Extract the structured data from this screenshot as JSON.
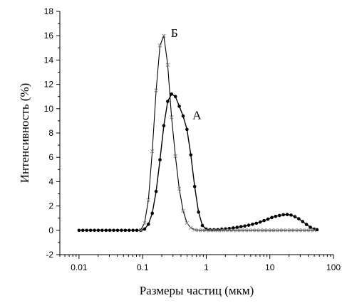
{
  "chart_data": {
    "type": "line",
    "xlabel": "Размеры частиц (мкм)",
    "ylabel": "Интенсивность (%)",
    "x_scale": "log",
    "xlim": [
      0.005,
      100
    ],
    "ylim": [
      -2,
      18
    ],
    "x_ticks": [
      0.01,
      0.1,
      1,
      10,
      100
    ],
    "x_tick_labels": [
      "0.01",
      "0.1",
      "1",
      "10",
      "100"
    ],
    "y_ticks": [
      -2,
      0,
      2,
      4,
      6,
      8,
      10,
      12,
      14,
      16,
      18
    ],
    "y_tick_labels": [
      "-2",
      "0",
      "2",
      "4",
      "6",
      "8",
      "10",
      "12",
      "14",
      "16",
      "18"
    ],
    "grid": false,
    "series": [
      {
        "name": "А",
        "marker": "filled-circle",
        "color": "#000000",
        "x": [
          0.01,
          0.0115,
          0.0132,
          0.0152,
          0.0175,
          0.0201,
          0.0231,
          0.0266,
          0.0305,
          0.0351,
          0.0404,
          0.0464,
          0.0534,
          0.0614,
          0.0706,
          0.0811,
          0.0933,
          0.1072,
          0.1233,
          0.1417,
          0.163,
          0.1874,
          0.2154,
          0.2477,
          0.2848,
          0.3275,
          0.3765,
          0.4329,
          0.4977,
          0.5722,
          0.6579,
          0.7565,
          0.8697,
          1.0,
          1.1498,
          1.3219,
          1.52,
          1.7475,
          2.0092,
          2.3101,
          2.656,
          3.0538,
          3.5112,
          4.037,
          4.6416,
          5.3367,
          6.1359,
          7.0548,
          8.1113,
          9.326,
          10.7227,
          12.3285,
          14.1747,
          16.2975,
          18.7382,
          21.5443,
          24.7708,
          28.4804,
          32.7455,
          37.6494,
          43.2876,
          49.7702,
          55.0
        ],
        "y": [
          0,
          0,
          0,
          0,
          0,
          0,
          0,
          0,
          0,
          0,
          0,
          0,
          0,
          0,
          0,
          0,
          0,
          0.1,
          0.5,
          1.4,
          3.2,
          5.8,
          8.6,
          10.6,
          11.2,
          11.0,
          10.2,
          9.4,
          8.3,
          6.2,
          3.6,
          1.5,
          0.4,
          0.1,
          0.05,
          0.05,
          0.05,
          0.1,
          0.12,
          0.15,
          0.2,
          0.25,
          0.3,
          0.35,
          0.42,
          0.5,
          0.58,
          0.68,
          0.8,
          0.92,
          1.05,
          1.15,
          1.22,
          1.28,
          1.3,
          1.25,
          1.12,
          0.95,
          0.72,
          0.48,
          0.25,
          0.1,
          0.05
        ]
      },
      {
        "name": "Б",
        "marker": "x-cross",
        "color": "#888888",
        "x": [
          0.0933,
          0.1072,
          0.1233,
          0.1417,
          0.163,
          0.1874,
          0.2154,
          0.2477,
          0.2848,
          0.3275,
          0.3765,
          0.4329,
          0.4977,
          0.5722,
          0.6579,
          0.7565,
          0.8697,
          1.0,
          1.1498,
          1.3219,
          1.52,
          1.7475,
          2.0092,
          2.3101,
          2.656,
          3.0538,
          3.5112,
          4.037,
          4.6416,
          5.3367,
          6.1359,
          7.0548,
          8.1113,
          9.326,
          10.7227,
          12.3285,
          14.1747,
          16.2975,
          18.7382,
          21.5443,
          24.7708,
          28.4804,
          32.7455,
          37.6494,
          43.2876,
          49.7702
        ],
        "y": [
          0,
          0.6,
          2.5,
          6.5,
          11.5,
          15.2,
          16.0,
          13.6,
          9.3,
          6.1,
          3.4,
          1.6,
          0.6,
          0.2,
          0.05,
          0,
          0,
          0,
          0,
          0,
          0,
          0,
          0,
          0,
          0,
          0,
          0,
          0,
          0,
          0,
          0,
          0,
          0,
          0,
          0,
          0,
          0,
          0,
          0,
          0,
          0,
          0,
          0,
          0,
          0,
          0
        ]
      }
    ]
  }
}
